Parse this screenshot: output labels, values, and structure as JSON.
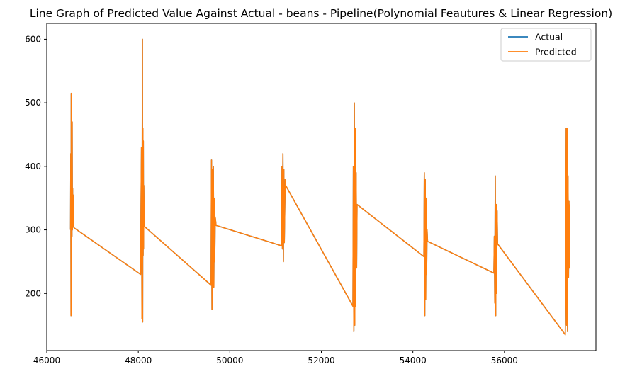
{
  "chart_data": {
    "type": "line",
    "title": "Line Graph of Predicted Value Against Actual - beans  - Pipeline(Polynomial Feautures & Linear Regression)",
    "xlabel": "",
    "ylabel": "",
    "xlim": [
      46000,
      58000
    ],
    "ylim": [
      110,
      625
    ],
    "xticks": [
      46000,
      48000,
      50000,
      52000,
      54000,
      56000
    ],
    "xtick_labels": [
      "46000",
      "48000",
      "50000",
      "52000",
      "54000",
      "56000"
    ],
    "yticks": [
      200,
      300,
      400,
      500,
      600
    ],
    "ytick_labels": [
      "200",
      "300",
      "400",
      "500",
      "600"
    ],
    "grid": false,
    "legend_position": "top-right",
    "series": [
      {
        "name": "Actual",
        "color": "#1f77b4",
        "x": [
          46520,
          46525,
          46530,
          46535,
          46540,
          46545,
          46550,
          46555,
          46560,
          46565,
          46570,
          46575,
          46580,
          46600,
          48050,
          48060,
          48070,
          48080,
          48090,
          48095,
          48100,
          48105,
          48110,
          48115,
          48120,
          48130,
          48140,
          49590,
          49600,
          49610,
          49620,
          49630,
          49640,
          49650,
          49660,
          49670,
          49680,
          49700,
          51130,
          51140,
          51150,
          51160,
          51170,
          51180,
          51190,
          51200,
          51210,
          51220,
          52690,
          52700,
          52710,
          52720,
          52730,
          52740,
          52750,
          52760,
          52770,
          52780,
          54240,
          54250,
          54260,
          54270,
          54280,
          54290,
          54300,
          54310,
          54320,
          55770,
          55780,
          55790,
          55800,
          55810,
          55820,
          55830,
          55840,
          55850,
          57330,
          57340,
          57350,
          57360,
          57370,
          57380,
          57390,
          57400,
          57410,
          57420,
          57430
        ],
        "y": [
          300,
          420,
          165,
          515,
          170,
          380,
          290,
          470,
          300,
          365,
          310,
          355,
          305,
          303,
          230,
          340,
          430,
          160,
          600,
          155,
          460,
          260,
          440,
          270,
          370,
          310,
          305,
          213,
          410,
          175,
          395,
          230,
          400,
          210,
          350,
          250,
          320,
          307,
          275,
          400,
          270,
          420,
          250,
          395,
          280,
          330,
          380,
          370,
          180,
          400,
          140,
          500,
          150,
          460,
          180,
          390,
          240,
          340,
          258,
          390,
          165,
          380,
          190,
          350,
          230,
          300,
          282,
          232,
          290,
          185,
          385,
          165,
          340,
          200,
          330,
          278,
          135,
          250,
          460,
          150,
          460,
          140,
          385,
          225,
          345,
          240,
          340
        ],
        "note_x_units": "data units"
      },
      {
        "name": "Predicted",
        "color": "#ff7f0e",
        "x": [
          46520,
          46525,
          46530,
          46535,
          46540,
          46545,
          46550,
          46555,
          46560,
          46565,
          46570,
          46575,
          46580,
          46600,
          48050,
          48060,
          48070,
          48080,
          48090,
          48095,
          48100,
          48105,
          48110,
          48115,
          48120,
          48130,
          48140,
          49590,
          49600,
          49610,
          49620,
          49630,
          49640,
          49650,
          49660,
          49670,
          49680,
          49700,
          51130,
          51140,
          51150,
          51160,
          51170,
          51180,
          51190,
          51200,
          51210,
          51220,
          52690,
          52700,
          52710,
          52720,
          52730,
          52740,
          52750,
          52760,
          52770,
          52780,
          54240,
          54250,
          54260,
          54270,
          54280,
          54290,
          54300,
          54310,
          54320,
          55770,
          55780,
          55790,
          55800,
          55810,
          55820,
          55830,
          55840,
          55850,
          57330,
          57340,
          57350,
          57360,
          57370,
          57380,
          57390,
          57400,
          57410,
          57420,
          57430
        ],
        "y": [
          300,
          420,
          165,
          515,
          170,
          380,
          290,
          470,
          300,
          365,
          310,
          355,
          305,
          303,
          230,
          340,
          430,
          160,
          600,
          155,
          460,
          260,
          440,
          270,
          370,
          310,
          305,
          213,
          410,
          175,
          395,
          230,
          400,
          210,
          350,
          250,
          320,
          307,
          275,
          400,
          270,
          420,
          250,
          395,
          280,
          330,
          380,
          370,
          180,
          400,
          140,
          500,
          150,
          460,
          180,
          390,
          240,
          340,
          258,
          390,
          165,
          380,
          190,
          350,
          230,
          300,
          282,
          232,
          290,
          185,
          385,
          165,
          340,
          200,
          330,
          278,
          135,
          250,
          460,
          150,
          460,
          140,
          385,
          225,
          345,
          240,
          340
        ]
      }
    ]
  }
}
